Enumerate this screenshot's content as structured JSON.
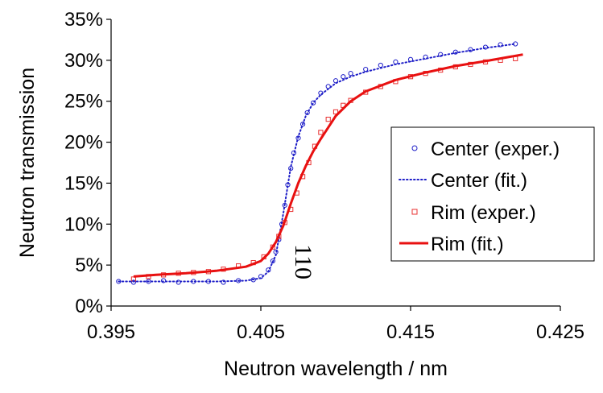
{
  "chart_data": {
    "type": "scatter",
    "title": "",
    "xlabel": "Neutron wavelength / nm",
    "ylabel": "Neutron transmission",
    "xlim": [
      0.395,
      0.425
    ],
    "ylim": [
      0,
      0.35
    ],
    "x_ticks": [
      0.395,
      0.405,
      0.415,
      0.425
    ],
    "x_tick_labels": [
      "0.395",
      "0.405",
      "0.415",
      "0.425"
    ],
    "y_ticks": [
      0,
      0.05,
      0.1,
      0.15,
      0.2,
      0.25,
      0.3,
      0.35
    ],
    "y_tick_labels": [
      "0%",
      "5%",
      "10%",
      "15%",
      "20%",
      "25%",
      "30%",
      "35%"
    ],
    "grid": false,
    "legend_position": "right",
    "annotation": {
      "text": "110",
      "x": 0.4065,
      "y": 0.05,
      "rotation": "vertical"
    },
    "series": [
      {
        "name": "Center (exper.)",
        "kind": "scatter",
        "marker": "circle",
        "color": "#1f1fc8",
        "x": [
          0.3955,
          0.3965,
          0.3975,
          0.3985,
          0.3995,
          0.4005,
          0.4015,
          0.4025,
          0.4035,
          0.4045,
          0.405,
          0.4055,
          0.4058,
          0.406,
          0.4062,
          0.4064,
          0.4066,
          0.4068,
          0.407,
          0.4072,
          0.4075,
          0.4078,
          0.4081,
          0.4085,
          0.409,
          0.4095,
          0.41,
          0.4105,
          0.411,
          0.412,
          0.413,
          0.414,
          0.415,
          0.416,
          0.417,
          0.418,
          0.419,
          0.42,
          0.421,
          0.422
        ],
        "y": [
          0.03,
          0.029,
          0.03,
          0.031,
          0.029,
          0.03,
          0.03,
          0.029,
          0.031,
          0.032,
          0.036,
          0.044,
          0.055,
          0.066,
          0.081,
          0.1,
          0.123,
          0.148,
          0.168,
          0.187,
          0.205,
          0.222,
          0.236,
          0.248,
          0.26,
          0.268,
          0.275,
          0.28,
          0.284,
          0.289,
          0.294,
          0.298,
          0.301,
          0.304,
          0.307,
          0.31,
          0.313,
          0.316,
          0.319,
          0.32
        ]
      },
      {
        "name": "Center (fit.)",
        "kind": "line",
        "style": "dotted",
        "color": "#1f1fc8",
        "x": [
          0.3955,
          0.398,
          0.4,
          0.402,
          0.404,
          0.405,
          0.4055,
          0.406,
          0.4065,
          0.407,
          0.4075,
          0.408,
          0.4085,
          0.409,
          0.41,
          0.411,
          0.412,
          0.414,
          0.416,
          0.418,
          0.42,
          0.422
        ],
        "y": [
          0.03,
          0.03,
          0.03,
          0.03,
          0.031,
          0.034,
          0.042,
          0.062,
          0.113,
          0.17,
          0.207,
          0.232,
          0.248,
          0.258,
          0.272,
          0.28,
          0.286,
          0.295,
          0.302,
          0.309,
          0.315,
          0.32
        ]
      },
      {
        "name": "Rim (exper.)",
        "kind": "scatter",
        "marker": "square",
        "color": "#e83030",
        "x": [
          0.3965,
          0.3975,
          0.3985,
          0.3995,
          0.4005,
          0.4015,
          0.4025,
          0.4035,
          0.4045,
          0.4052,
          0.4058,
          0.4062,
          0.4066,
          0.407,
          0.4074,
          0.4078,
          0.4082,
          0.4086,
          0.409,
          0.4095,
          0.41,
          0.4105,
          0.411,
          0.412,
          0.413,
          0.414,
          0.415,
          0.416,
          0.417,
          0.418,
          0.419,
          0.42,
          0.421,
          0.422
        ],
        "y": [
          0.033,
          0.036,
          0.038,
          0.04,
          0.041,
          0.042,
          0.045,
          0.049,
          0.053,
          0.06,
          0.072,
          0.085,
          0.102,
          0.118,
          0.138,
          0.158,
          0.175,
          0.195,
          0.212,
          0.228,
          0.237,
          0.245,
          0.251,
          0.261,
          0.268,
          0.274,
          0.28,
          0.284,
          0.288,
          0.292,
          0.295,
          0.298,
          0.3,
          0.302
        ]
      },
      {
        "name": "Rim (fit.)",
        "kind": "line",
        "style": "solid",
        "color": "#e81010",
        "x": [
          0.3965,
          0.398,
          0.4,
          0.402,
          0.404,
          0.405,
          0.4055,
          0.406,
          0.4065,
          0.407,
          0.4075,
          0.408,
          0.4085,
          0.409,
          0.4095,
          0.41,
          0.411,
          0.412,
          0.414,
          0.416,
          0.418,
          0.42,
          0.4225
        ],
        "y": [
          0.036,
          0.038,
          0.04,
          0.043,
          0.048,
          0.055,
          0.064,
          0.078,
          0.098,
          0.125,
          0.15,
          0.171,
          0.189,
          0.204,
          0.218,
          0.232,
          0.25,
          0.262,
          0.276,
          0.285,
          0.293,
          0.299,
          0.307
        ]
      }
    ]
  }
}
